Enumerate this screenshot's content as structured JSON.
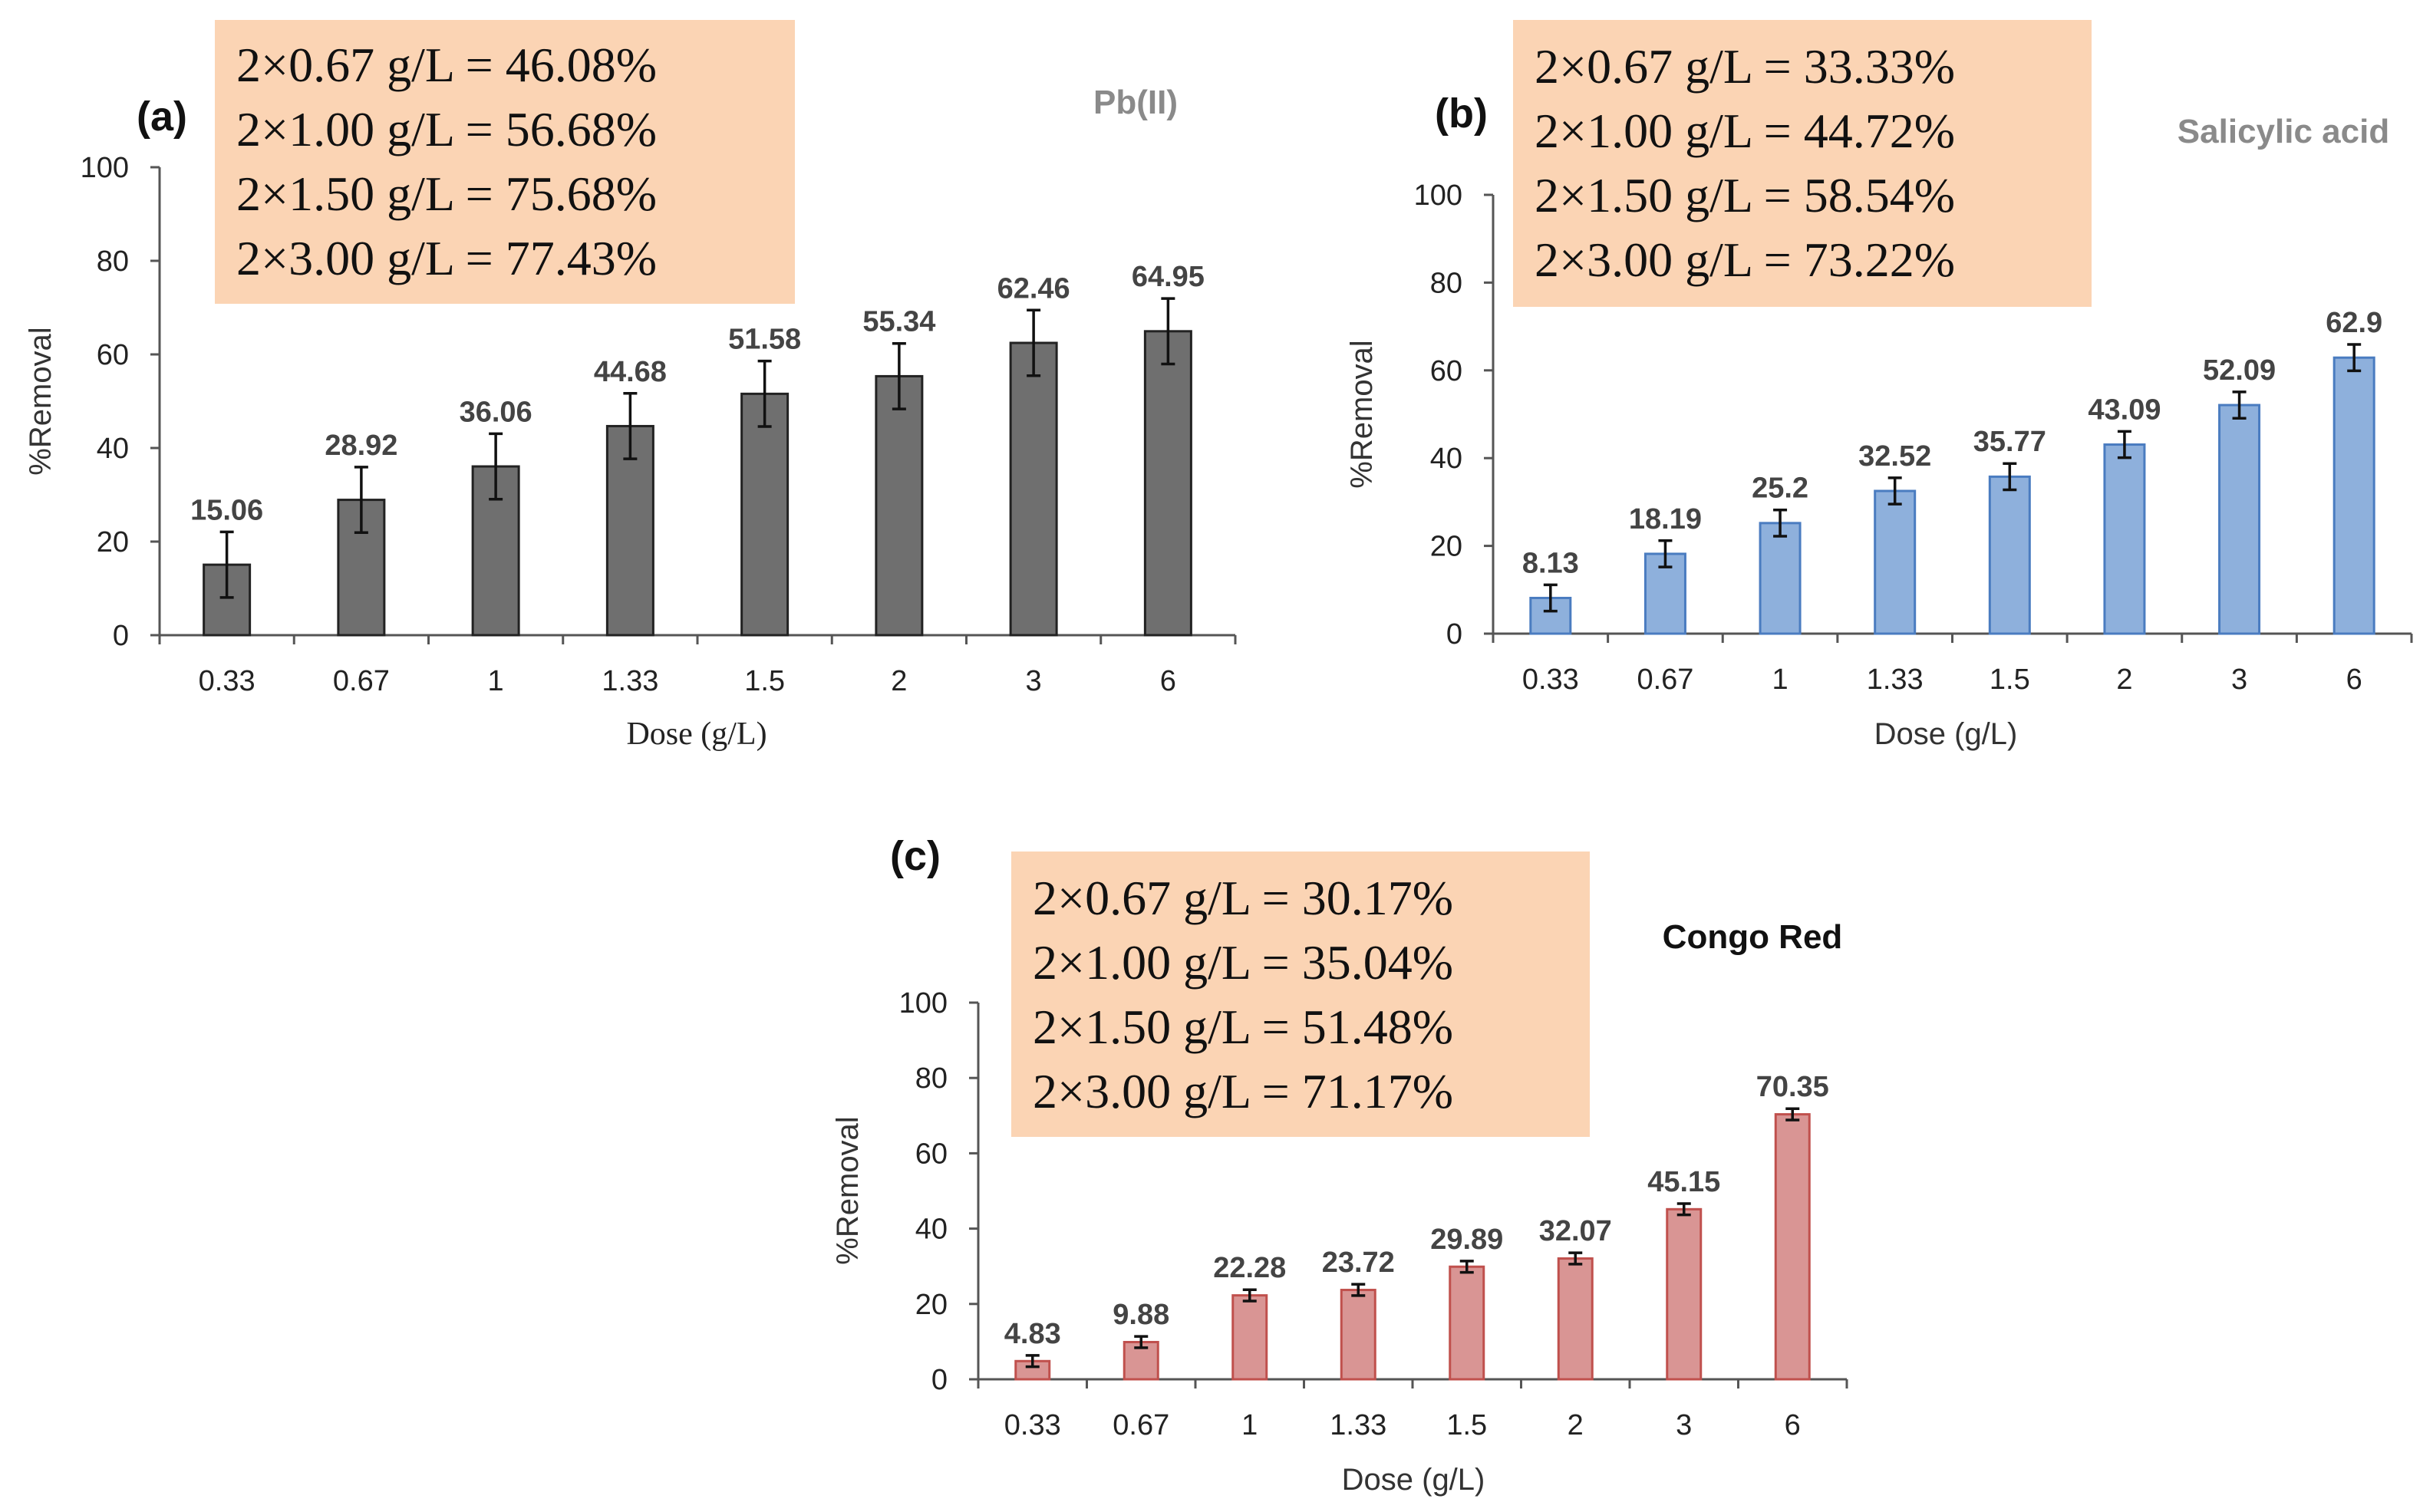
{
  "chart_data": [
    {
      "panel": "(a)",
      "series_title": "Pb(II)",
      "type": "bar",
      "categories": [
        "0.33",
        "0.67",
        "1",
        "1.33",
        "1.5",
        "2",
        "3",
        "6"
      ],
      "values": [
        15.06,
        28.92,
        36.06,
        44.68,
        51.58,
        55.34,
        62.46,
        64.95
      ],
      "value_labels": [
        "15.06",
        "28.92",
        "36.06",
        "44.68",
        "51.58",
        "55.34",
        "62.46",
        "64.95"
      ],
      "error": [
        7,
        7,
        7,
        7,
        7,
        7,
        7,
        7
      ],
      "xlabel": "Dose (g/L)",
      "ylabel": "%Removal",
      "ylim": [
        0,
        100
      ],
      "yticks": [
        "0",
        "20",
        "40",
        "60",
        "80",
        "100"
      ],
      "bar_color": "#6f6f6f",
      "bar_edge": "#222222",
      "title_color": "#8a8a8a",
      "note_lines": [
        "2×0.67 g/L = 46.08%",
        "2×1.00 g/L = 56.68%",
        "2×1.50 g/L = 75.68%",
        "2×3.00 g/L = 77.43%"
      ]
    },
    {
      "panel": "(b)",
      "series_title": "Salicylic acid",
      "type": "bar",
      "categories": [
        "0.33",
        "0.67",
        "1",
        "1.33",
        "1.5",
        "2",
        "3",
        "6"
      ],
      "values": [
        8.13,
        18.19,
        25.2,
        32.52,
        35.77,
        43.09,
        52.09,
        62.9
      ],
      "value_labels": [
        "8.13",
        "18.19",
        "25.2",
        "32.52",
        "35.77",
        "43.09",
        "52.09",
        "62.9"
      ],
      "error": [
        3,
        3,
        3,
        3,
        3,
        3,
        3,
        3
      ],
      "xlabel": "Dose (g/L)",
      "ylabel": "%Removal",
      "ylim": [
        0,
        100
      ],
      "yticks": [
        "0",
        "20",
        "40",
        "60",
        "80",
        "100"
      ],
      "bar_color": "#8eb0dc",
      "bar_edge": "#4a7cc0",
      "title_color": "#8a8a8a",
      "note_lines": [
        "2×0.67 g/L = 33.33%",
        "2×1.00 g/L = 44.72%",
        "2×1.50 g/L = 58.54%",
        "2×3.00 g/L = 73.22%"
      ]
    },
    {
      "panel": "(c)",
      "series_title": "Congo Red",
      "type": "bar",
      "categories": [
        "0.33",
        "0.67",
        "1",
        "1.33",
        "1.5",
        "2",
        "3",
        "6"
      ],
      "values": [
        4.83,
        9.88,
        22.28,
        23.72,
        29.89,
        32.07,
        45.15,
        70.35
      ],
      "value_labels": [
        "4.83",
        "9.88",
        "22.28",
        "23.72",
        "29.89",
        "32.07",
        "45.15",
        "70.35"
      ],
      "error": [
        1.5,
        1.5,
        1.5,
        1.5,
        1.5,
        1.5,
        1.5,
        1.5
      ],
      "xlabel": "Dose (g/L)",
      "ylabel": "%Removal",
      "ylim": [
        0,
        100
      ],
      "yticks": [
        "0",
        "20",
        "40",
        "60",
        "80",
        "100"
      ],
      "bar_color": "#d99594",
      "bar_edge": "#c0504d",
      "title_color": "#111111",
      "note_lines": [
        "2×0.67 g/L = 30.17%",
        "2×1.00 g/L = 35.04%",
        "2×1.50 g/L = 51.48%",
        "2×3.00 g/L = 71.17%"
      ]
    }
  ],
  "colors": {
    "note_box": "#fbd4b4"
  }
}
